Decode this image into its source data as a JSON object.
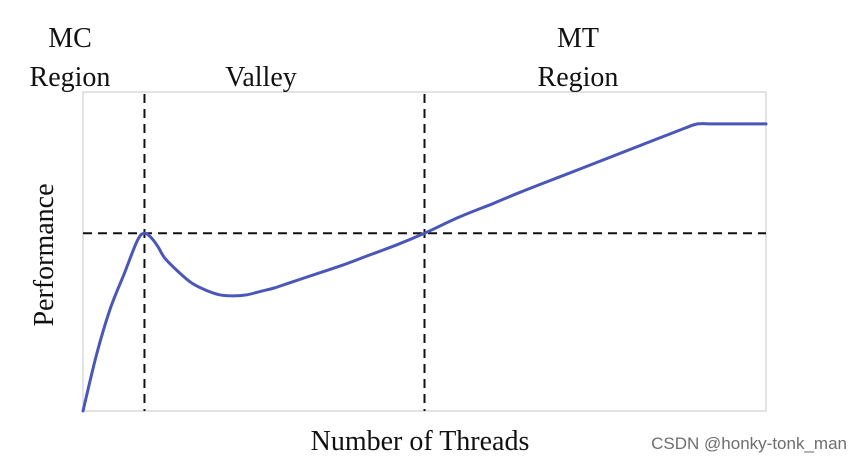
{
  "chart_data": {
    "type": "line",
    "title": "",
    "xlabel": "Number of Threads",
    "ylabel": "Performance",
    "grid": false,
    "region_labels": [
      {
        "lines": [
          "MC",
          "Region"
        ]
      },
      {
        "lines": [
          "Valley"
        ]
      },
      {
        "lines": [
          "MT",
          "Region"
        ]
      }
    ],
    "series": [
      {
        "color": "#4a56b8",
        "x": [
          0,
          2,
          4,
          6,
          8,
          9,
          10,
          11,
          12,
          14,
          16,
          18,
          20,
          22,
          24,
          26,
          28,
          30,
          34,
          38,
          42,
          46,
          50,
          55,
          60,
          64,
          70,
          76,
          82,
          88,
          90,
          92,
          95,
          100
        ],
        "y": [
          0,
          25,
          45,
          60,
          75,
          78,
          76,
          72,
          67,
          61,
          56,
          53,
          51,
          50.5,
          51,
          52.5,
          54,
          56,
          60,
          64,
          68.5,
          73,
          78,
          85,
          91,
          96,
          103,
          110,
          117,
          124,
          126,
          126,
          126,
          126
        ]
      }
    ],
    "thresholds": {
      "x_mc": 9,
      "x_mt": 50,
      "y_ref": 78
    },
    "xlim": [
      0,
      100
    ],
    "ylim": [
      0,
      140
    ]
  },
  "watermark": "CSDN @honky-tonk_man"
}
